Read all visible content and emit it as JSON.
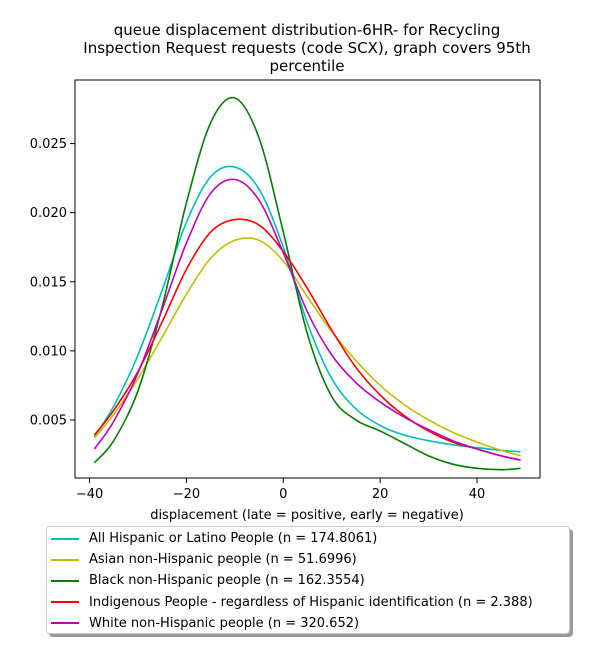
{
  "chart_data": {
    "type": "line",
    "title_lines": [
      "queue displacement distribution-6HR-  for Recycling",
      "Inspection Request  requests (code SCX), graph covers 95th",
      "percentile"
    ],
    "xlabel": "displacement (late = positive, early = negative)",
    "ylabel": "",
    "xlim": [
      -43,
      53
    ],
    "ylim": [
      0.0008,
      0.0296
    ],
    "xticks": [
      -40,
      -20,
      0,
      20,
      40
    ],
    "xtick_labels": [
      "−40",
      "−20",
      "0",
      "20",
      "40"
    ],
    "yticks": [
      0.005,
      0.01,
      0.015,
      0.02,
      0.025
    ],
    "ytick_labels": [
      "0.005",
      "0.010",
      "0.015",
      "0.020",
      "0.025"
    ],
    "grid": false,
    "legend_position": "below",
    "x": [
      -39,
      -35,
      -30,
      -25,
      -20,
      -15,
      -10,
      -5,
      0,
      5,
      10,
      15,
      20,
      25,
      30,
      35,
      40,
      45,
      49
    ],
    "series": [
      {
        "name": "All Hispanic or Latino People (n = 174.8061)",
        "color": "#00bfbf",
        "values": [
          0.0038,
          0.006,
          0.0097,
          0.0144,
          0.0193,
          0.0226,
          0.0233,
          0.0217,
          0.0175,
          0.012,
          0.008,
          0.0058,
          0.0046,
          0.0039,
          0.0035,
          0.0032,
          0.003,
          0.0028,
          0.0027
        ]
      },
      {
        "name": "Asian non-Hispanic people (n = 51.6996)",
        "color": "#bfbf00",
        "values": [
          0.0037,
          0.0054,
          0.008,
          0.011,
          0.0141,
          0.0167,
          0.018,
          0.018,
          0.0165,
          0.0139,
          0.0114,
          0.0093,
          0.0075,
          0.0061,
          0.005,
          0.0041,
          0.0034,
          0.0028,
          0.0024
        ]
      },
      {
        "name": "Black non-Hispanic people (n = 162.3554)",
        "color": "#008000",
        "values": [
          0.0019,
          0.0035,
          0.0071,
          0.0132,
          0.0207,
          0.0265,
          0.0283,
          0.0254,
          0.0186,
          0.0112,
          0.0067,
          0.005,
          0.0042,
          0.0033,
          0.0024,
          0.0018,
          0.0015,
          0.0014,
          0.0015
        ]
      },
      {
        "name": "Indigenous People - regardless of Hispanic identification (n = 2.388)",
        "color": "#ff0000",
        "values": [
          0.0039,
          0.0057,
          0.0085,
          0.0121,
          0.0159,
          0.0186,
          0.0195,
          0.0191,
          0.0172,
          0.0145,
          0.0115,
          0.0088,
          0.0068,
          0.0053,
          0.0042,
          0.0034,
          0.0029,
          0.0024,
          0.0021
        ]
      },
      {
        "name": "White non-Hispanic people (n = 320.652)",
        "color": "#bf00bf",
        "values": [
          0.0029,
          0.0049,
          0.0084,
          0.013,
          0.0178,
          0.0214,
          0.0224,
          0.0209,
          0.0171,
          0.0128,
          0.0097,
          0.0077,
          0.0063,
          0.0052,
          0.0043,
          0.0035,
          0.0029,
          0.0024,
          0.0021
        ]
      }
    ]
  }
}
